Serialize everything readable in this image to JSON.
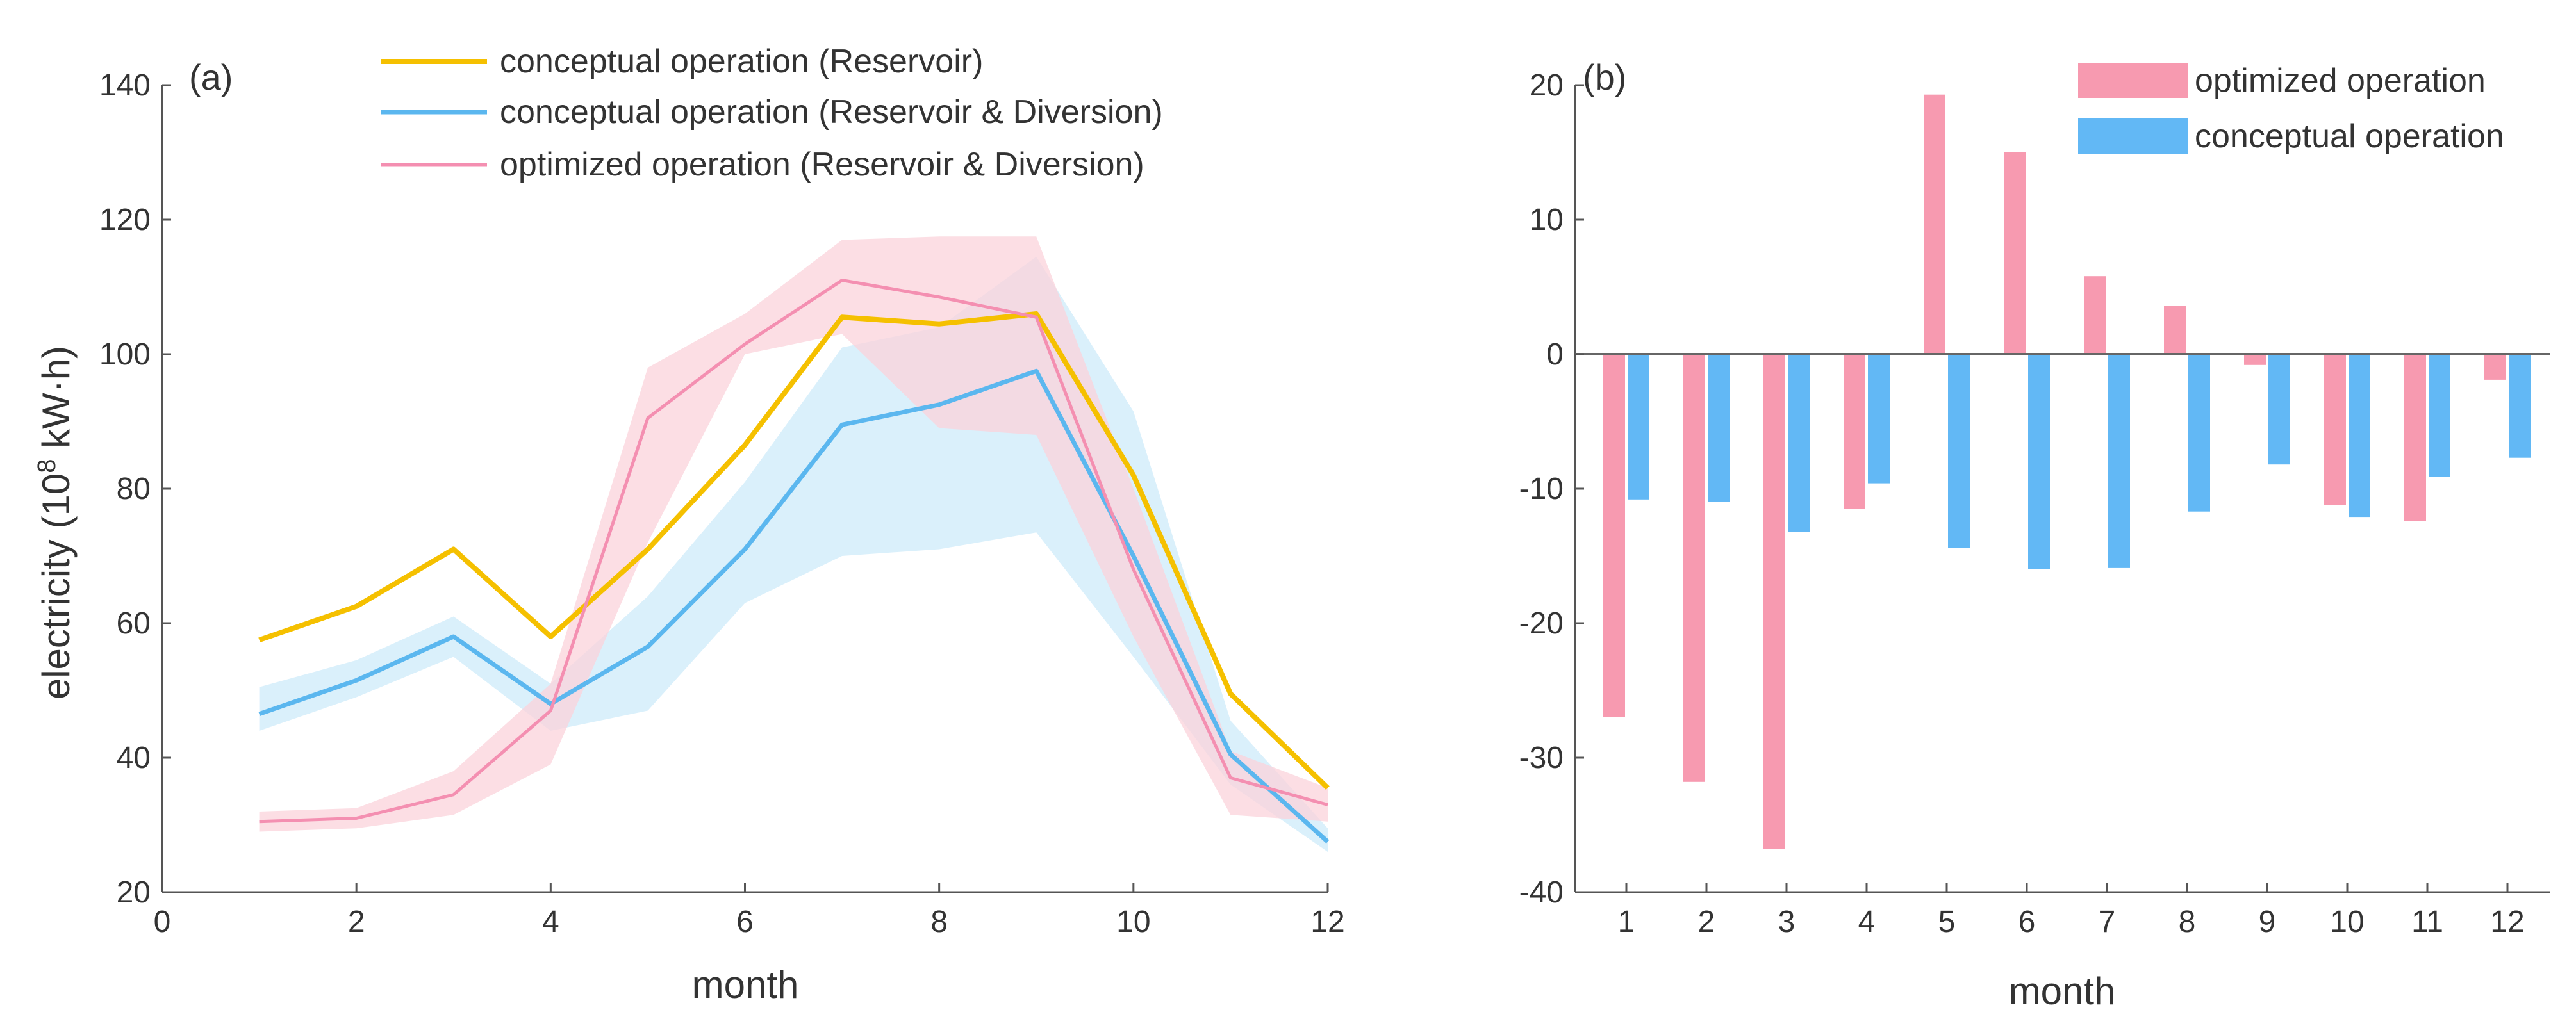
{
  "chart_data": [
    {
      "panel": "(a)",
      "type": "line",
      "xlabel": "month",
      "ylabel_prefix": "electricity (10",
      "ylabel_exp": "8",
      "ylabel_suffix": " kW·h)",
      "xlim": [
        0,
        12
      ],
      "ylim": [
        20,
        140
      ],
      "xticks": [
        0,
        2,
        4,
        6,
        8,
        10,
        12
      ],
      "yticks": [
        20,
        40,
        60,
        80,
        100,
        120,
        140
      ],
      "legend_position": "top-center",
      "series": [
        {
          "name": "conceptual operation (Reservoir)",
          "color": "#F5C000",
          "x": [
            1,
            2,
            3,
            4,
            5,
            6,
            7,
            8,
            9,
            10,
            11,
            12
          ],
          "values": [
            57.5,
            62.5,
            71.0,
            58.0,
            71.0,
            86.5,
            105.5,
            104.5,
            106.0,
            82.0,
            49.5,
            35.5
          ]
        },
        {
          "name": "conceptual operation (Reservoir & Diversion)",
          "color": "#5BB7EF",
          "band_color": "#CDEBFA",
          "x": [
            1,
            2,
            3,
            4,
            5,
            6,
            7,
            8,
            9,
            10,
            11,
            12
          ],
          "values": [
            46.5,
            51.5,
            58.0,
            48.0,
            56.5,
            71.0,
            89.5,
            92.5,
            97.5,
            70.0,
            40.5,
            27.5
          ],
          "band_lower": [
            44.0,
            49.0,
            55.0,
            44.0,
            47.0,
            63.0,
            70.0,
            71.0,
            73.5,
            55.0,
            36.0,
            26.0
          ],
          "band_upper": [
            50.5,
            54.5,
            61.0,
            51.0,
            64.0,
            81.0,
            101.0,
            104.0,
            114.5,
            91.5,
            45.5,
            29.5
          ]
        },
        {
          "name": "optimized operation (Reservoir & Diversion)",
          "color": "#F48FB1",
          "band_color": "#FBD3DB",
          "x": [
            1,
            2,
            3,
            4,
            5,
            6,
            7,
            8,
            9,
            10,
            11,
            12
          ],
          "values": [
            30.5,
            31.0,
            34.5,
            47.0,
            90.5,
            101.5,
            111.0,
            108.5,
            105.5,
            68.0,
            37.0,
            33.0
          ],
          "band_lower": [
            29.0,
            29.5,
            31.5,
            39.0,
            72.0,
            100.0,
            103.0,
            89.0,
            88.0,
            58.0,
            31.5,
            30.5
          ],
          "band_upper": [
            32.0,
            32.5,
            38.0,
            51.0,
            98.0,
            106.0,
            117.0,
            117.5,
            117.5,
            80.0,
            41.0,
            35.5
          ]
        }
      ]
    },
    {
      "panel": "(b)",
      "type": "bar",
      "xlabel": "month",
      "ylabel": "",
      "ylim": [
        -40,
        20
      ],
      "yticks": [
        -40,
        -30,
        -20,
        -10,
        0,
        10,
        20
      ],
      "categories": [
        "1",
        "2",
        "3",
        "4",
        "5",
        "6",
        "7",
        "8",
        "9",
        "10",
        "11",
        "12"
      ],
      "legend_position": "top-right",
      "series": [
        {
          "name": "optimized operation",
          "color": "#F79AB0",
          "values": [
            -27.0,
            -31.8,
            -36.8,
            -11.5,
            19.3,
            15.0,
            5.8,
            3.6,
            -0.8,
            -11.2,
            -12.4,
            -1.9
          ]
        },
        {
          "name": "conceptual operation",
          "color": "#62B8F5",
          "values": [
            -10.8,
            -11.0,
            -13.2,
            -9.6,
            -14.4,
            -16.0,
            -15.9,
            -11.7,
            -8.2,
            -12.1,
            -9.1,
            -7.7
          ]
        }
      ]
    }
  ]
}
